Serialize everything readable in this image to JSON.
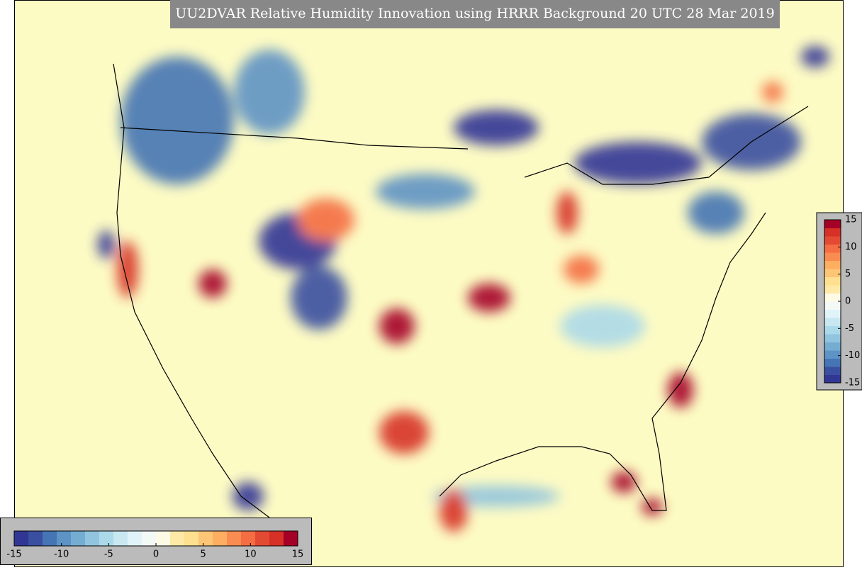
{
  "title": "UU2DVAR Relative Humidity Innovation using HRRR Background 20 UTC 28 Mar 2019",
  "colorscale": {
    "range": [
      -15,
      15
    ],
    "colors": [
      "#313695",
      "#3b4fa0",
      "#4575b4",
      "#5e93c5",
      "#74add1",
      "#91c4de",
      "#abd9e9",
      "#c8e7f0",
      "#e0f3f8",
      "#f3faf6",
      "#fdfbe6",
      "#fee9a6",
      "#fee090",
      "#fdc576",
      "#fdae61",
      "#f88c51",
      "#f46d43",
      "#e34a33",
      "#d73027",
      "#a50026"
    ]
  },
  "colorbar_right": {
    "ticks": [
      -15,
      -10,
      -5,
      0,
      5,
      10,
      15
    ]
  },
  "colorbar_bottom": {
    "ticks": [
      -15,
      -10,
      -5,
      0,
      5,
      10,
      15
    ]
  }
}
